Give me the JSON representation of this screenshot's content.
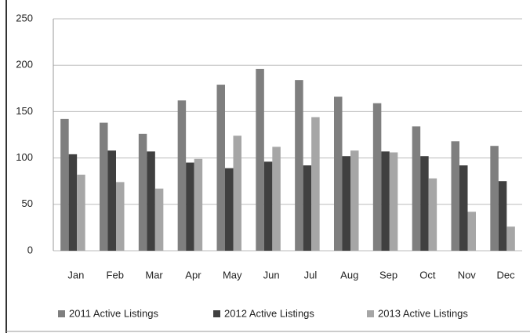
{
  "chart_data": {
    "type": "bar",
    "categories": [
      "Jan",
      "Feb",
      "Mar",
      "Apr",
      "May",
      "Jun",
      "Jul",
      "Aug",
      "Sep",
      "Oct",
      "Nov",
      "Dec"
    ],
    "series": [
      {
        "name": "2011 Active Listings",
        "color": "#7f7f7f",
        "values": [
          142,
          138,
          126,
          162,
          179,
          196,
          184,
          166,
          159,
          134,
          118,
          113
        ]
      },
      {
        "name": "2012 Active Listings",
        "color": "#404040",
        "values": [
          104,
          108,
          107,
          95,
          89,
          96,
          92,
          102,
          107,
          102,
          92,
          75
        ]
      },
      {
        "name": "2013 Active Listings",
        "color": "#a6a6a6",
        "values": [
          82,
          74,
          67,
          99,
          124,
          112,
          144,
          108,
          106,
          78,
          42,
          26
        ]
      }
    ],
    "ylim": [
      0,
      250
    ],
    "yticks": [
      0,
      50,
      100,
      150,
      200,
      250
    ],
    "grid": true,
    "legend": "bottom"
  }
}
